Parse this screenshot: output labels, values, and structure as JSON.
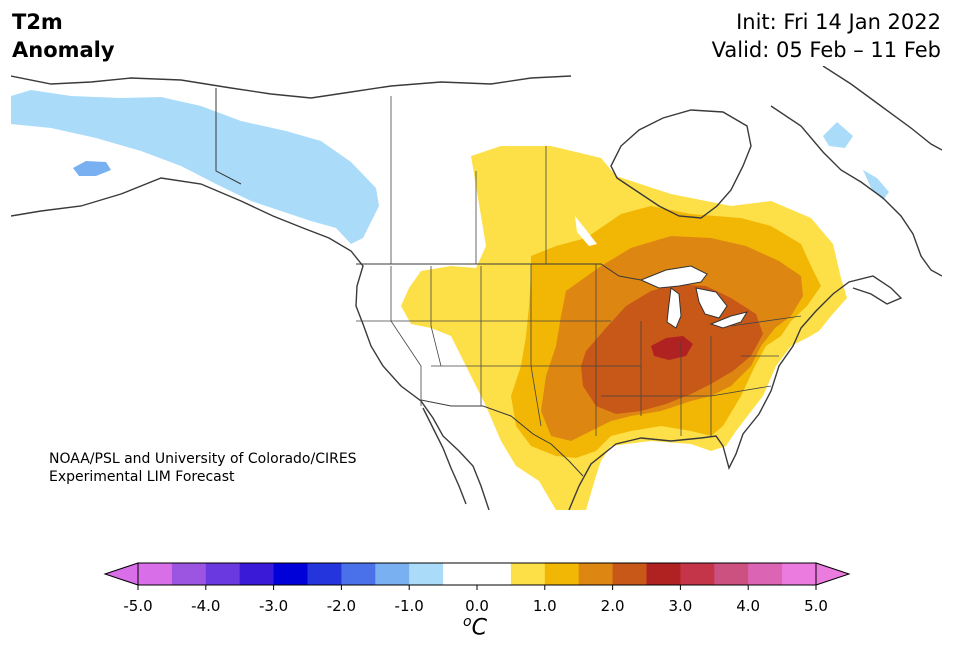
{
  "header": {
    "title_lines": [
      "T2m",
      "Anomaly"
    ],
    "init_text": "Init: Fri 14 Jan 2022",
    "valid_text": "Valid: 05 Feb – 11 Feb"
  },
  "map": {
    "region": "North America",
    "credit_lines": [
      "NOAA/PSL and University of Colorado/CIRES",
      "Experimental LIM Forecast"
    ]
  },
  "colorbar": {
    "tick_labels": [
      "-5.0",
      "-4.0",
      "-3.0",
      "-2.0",
      "-1.0",
      "0.0",
      "1.0",
      "2.0",
      "3.0",
      "4.0",
      "5.0"
    ],
    "unit_main": "C",
    "unit_sup": "o",
    "colors": [
      "#d86fe8",
      "#9b55e0",
      "#6a39e0",
      "#3a1ad6",
      "#0000d8",
      "#2535de",
      "#4a70ea",
      "#78b0f2",
      "#aadcfa",
      "#ffffff",
      "#ffffff",
      "#fde047",
      "#f2b705",
      "#de8612",
      "#c85817",
      "#b02222",
      "#c4354a",
      "#cc5080",
      "#dc64b4",
      "#ec7be0"
    ],
    "extend_low_color": "#d86fe8",
    "extend_high_color": "#ec7be0"
  },
  "anomaly_colors": {
    "neg_05_10": "#aadcfa",
    "neg_10_15": "#78b0f2",
    "pos_05_10": "#fde047",
    "pos_10_15": "#f2b705",
    "pos_15_20": "#de8612",
    "pos_20_25": "#c85817",
    "pos_25_30": "#b02222"
  }
}
